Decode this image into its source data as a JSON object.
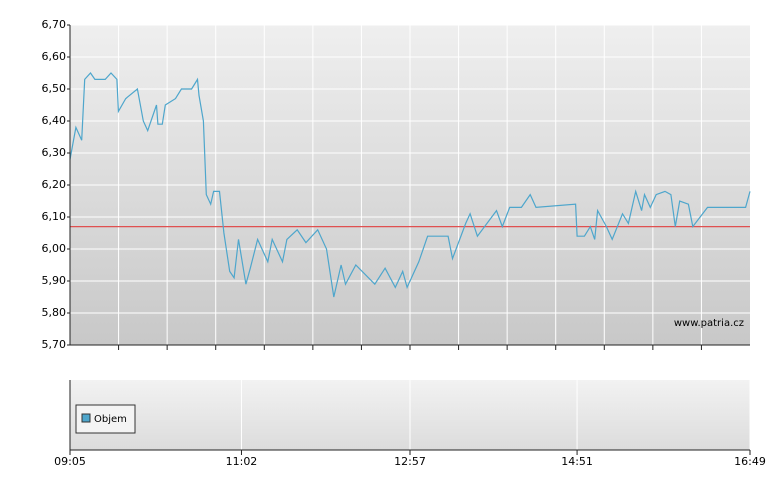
{
  "chart_data": {
    "type": "line",
    "x": [
      "09:05",
      "09:09",
      "09:13",
      "09:15",
      "09:19",
      "09:22",
      "09:29",
      "09:33",
      "09:37",
      "09:38",
      "09:43",
      "09:51",
      "09:55",
      "09:58",
      "10:04",
      "10:05",
      "10:08",
      "10:10",
      "10:17",
      "10:21",
      "10:28",
      "10:32",
      "10:33",
      "10:36",
      "10:38",
      "10:41",
      "10:43",
      "10:47",
      "10:50",
      "10:54",
      "10:57",
      "11:00",
      "11:05",
      "11:08",
      "11:13",
      "11:20",
      "11:23",
      "11:30",
      "11:33",
      "11:40",
      "11:46",
      "11:54",
      "12:00",
      "12:05",
      "12:10",
      "12:13",
      "12:20",
      "12:33",
      "12:40",
      "12:47",
      "12:52",
      "12:55",
      "13:03",
      "13:09",
      "13:23",
      "13:26",
      "13:35",
      "13:38",
      "13:43",
      "13:56",
      "14:00",
      "14:05",
      "14:13",
      "14:19",
      "14:23",
      "14:50",
      "14:51",
      "14:56",
      "15:00",
      "15:03",
      "15:05",
      "15:11",
      "15:15",
      "15:22",
      "15:26",
      "15:31",
      "15:35",
      "15:37",
      "15:41",
      "15:45",
      "15:51",
      "15:55",
      "15:58",
      "16:01",
      "16:07",
      "16:10",
      "16:20",
      "16:46",
      "16:49"
    ],
    "series": [
      {
        "color": "#4ea6cc",
        "values": [
          6.28,
          6.38,
          6.34,
          6.53,
          6.55,
          6.53,
          6.53,
          6.55,
          6.53,
          6.43,
          6.47,
          6.5,
          6.4,
          6.37,
          6.45,
          6.39,
          6.39,
          6.45,
          6.47,
          6.5,
          6.5,
          6.53,
          6.48,
          6.4,
          6.17,
          6.14,
          6.18,
          6.18,
          6.05,
          5.93,
          5.91,
          6.03,
          5.89,
          5.94,
          6.03,
          5.96,
          6.03,
          5.96,
          6.03,
          6.06,
          6.02,
          6.06,
          6.0,
          5.85,
          5.95,
          5.89,
          5.95,
          5.89,
          5.94,
          5.88,
          5.93,
          5.88,
          5.96,
          6.04,
          6.04,
          5.97,
          6.08,
          6.11,
          6.04,
          6.12,
          6.07,
          6.13,
          6.13,
          6.17,
          6.13,
          6.14,
          6.04,
          6.04,
          6.07,
          6.03,
          6.12,
          6.07,
          6.03,
          6.11,
          6.08,
          6.18,
          6.12,
          6.17,
          6.13,
          6.17,
          6.18,
          6.17,
          6.07,
          6.15,
          6.14,
          6.07,
          6.13,
          6.13,
          6.18
        ]
      }
    ],
    "reference_line": {
      "value": 6.07,
      "color": "#e05050"
    },
    "xlim": [
      "09:05",
      "16:49"
    ],
    "xticks": [
      "09:05",
      "11:02",
      "12:57",
      "14:51",
      "16:49"
    ],
    "ylim": [
      5.7,
      6.7
    ],
    "yticks": [
      {
        "value": 5.7,
        "label": "5,70"
      },
      {
        "value": 5.8,
        "label": "5,80"
      },
      {
        "value": 5.9,
        "label": "5,90"
      },
      {
        "value": 6.0,
        "label": "6,00"
      },
      {
        "value": 6.1,
        "label": "6,10"
      },
      {
        "value": 6.2,
        "label": "6,20"
      },
      {
        "value": 6.3,
        "label": "6,30"
      },
      {
        "value": 6.4,
        "label": "6,40"
      },
      {
        "value": 6.5,
        "label": "6,50"
      },
      {
        "value": 6.6,
        "label": "6,60"
      },
      {
        "value": 6.7,
        "label": "6,70"
      }
    ],
    "grid": true,
    "watermark": "www.patria.cz",
    "legend": {
      "name": "Objem",
      "color": "#4ea6cc"
    }
  }
}
